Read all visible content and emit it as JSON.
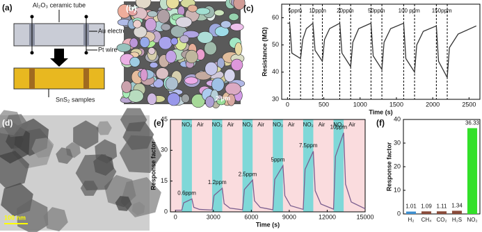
{
  "panels": [
    "(a)",
    "(b)",
    "(c)",
    "(d)",
    "(e)",
    "(f)"
  ],
  "diagram": {
    "tube": "Al₂O₃ ceramic tube",
    "electrode": "Au electrode",
    "wire": "Pt wire",
    "sample": "SnS₂ samples"
  },
  "images": {
    "sem_scale": "2 μm",
    "tem_scale": "100 nm"
  },
  "chart_data": [
    {
      "type": "line",
      "xlabel": "Time (s)",
      "ylabel": "Resistance (MΩ)",
      "color": "#333333",
      "x": [
        0,
        30,
        60,
        180,
        210,
        260,
        350,
        380,
        480,
        510,
        580,
        720,
        750,
        870,
        900,
        980,
        1150,
        1180,
        1300,
        1330,
        1420,
        1600,
        1630,
        1750,
        1780,
        1870,
        2050,
        2080,
        2200,
        2230,
        2350,
        2600
      ],
      "values": [
        58,
        58,
        47,
        45,
        52,
        56,
        58,
        48,
        44,
        52,
        56,
        58,
        47,
        42,
        51,
        56,
        58,
        46,
        41,
        51,
        56,
        58,
        45,
        40,
        50,
        55,
        57,
        44,
        38,
        49,
        54,
        57
      ],
      "cycles": [
        {
          "label": "5ppm",
          "on": 30,
          "off": 180
        },
        {
          "label": "10ppm",
          "on": 350,
          "off": 480
        },
        {
          "label": "20ppm",
          "on": 720,
          "off": 870
        },
        {
          "label": "50ppm",
          "on": 1150,
          "off": 1300
        },
        {
          "label": "100 ppm",
          "on": 1600,
          "off": 1750
        },
        {
          "label": "150ppm",
          "on": 2050,
          "off": 2200
        }
      ],
      "xlim": [
        -80,
        2650
      ],
      "xticks": [
        0,
        500,
        1000,
        1500,
        2000,
        2500
      ],
      "ylim": [
        30,
        65
      ],
      "yticks": [
        30,
        40,
        50,
        60
      ]
    },
    {
      "type": "line",
      "xlabel": "Time (s)",
      "ylabel": "Response factor",
      "color": "#7b5f8f",
      "band_labels": [
        "NO₂",
        "Air"
      ],
      "band_colors": [
        "#7fd8d8",
        "#f6c4c8"
      ],
      "x": [
        0,
        500,
        650,
        1300,
        1450,
        1900,
        2900,
        3050,
        3700,
        3850,
        4300,
        5300,
        5450,
        6100,
        6250,
        6700,
        7700,
        7850,
        8500,
        8650,
        9100,
        10100,
        10250,
        10900,
        11050,
        11500,
        12500,
        12650,
        13300,
        13450,
        13900,
        15000
      ],
      "values": [
        0.8,
        0.8,
        4.4,
        6.3,
        2.2,
        1.2,
        0.9,
        8,
        11.5,
        4,
        1.8,
        1,
        10.9,
        15.5,
        5.4,
        2.2,
        1,
        15.8,
        22.5,
        7.9,
        3,
        1.2,
        20.7,
        29.5,
        10.3,
        3.8,
        1.3,
        27,
        38.5,
        13.5,
        4.8,
        1.5
      ],
      "cycles": [
        {
          "label": "0.6ppm",
          "on": 500,
          "off": 1300
        },
        {
          "label": "1.2ppm",
          "on": 2900,
          "off": 3700
        },
        {
          "label": "2.5ppm",
          "on": 5300,
          "off": 6100
        },
        {
          "label": "5ppm",
          "on": 7700,
          "off": 8500
        },
        {
          "label": "7.5ppm",
          "on": 10100,
          "off": 10900
        },
        {
          "label": "10ppm",
          "on": 12500,
          "off": 13300
        }
      ],
      "xlim": [
        -400,
        15000
      ],
      "xticks": [
        0,
        3000,
        6000,
        9000,
        12000,
        15000
      ],
      "ylim": [
        0,
        45
      ],
      "yticks": [
        0,
        15,
        30,
        45
      ]
    },
    {
      "type": "bar",
      "ylabel": "Response factor",
      "categories": [
        "H₂",
        "CH₄",
        "CO₂",
        "H₂S",
        "NO₂"
      ],
      "values": [
        1.01,
        1.09,
        1.11,
        1.34,
        36.33
      ],
      "colors": [
        "#3d8fd0",
        "#8a4b3a",
        "#8a4b3a",
        "#8a4b3a",
        "#33e02a"
      ],
      "ylim": [
        0,
        40
      ],
      "yticks": [
        0,
        10,
        20,
        30,
        40
      ]
    }
  ]
}
